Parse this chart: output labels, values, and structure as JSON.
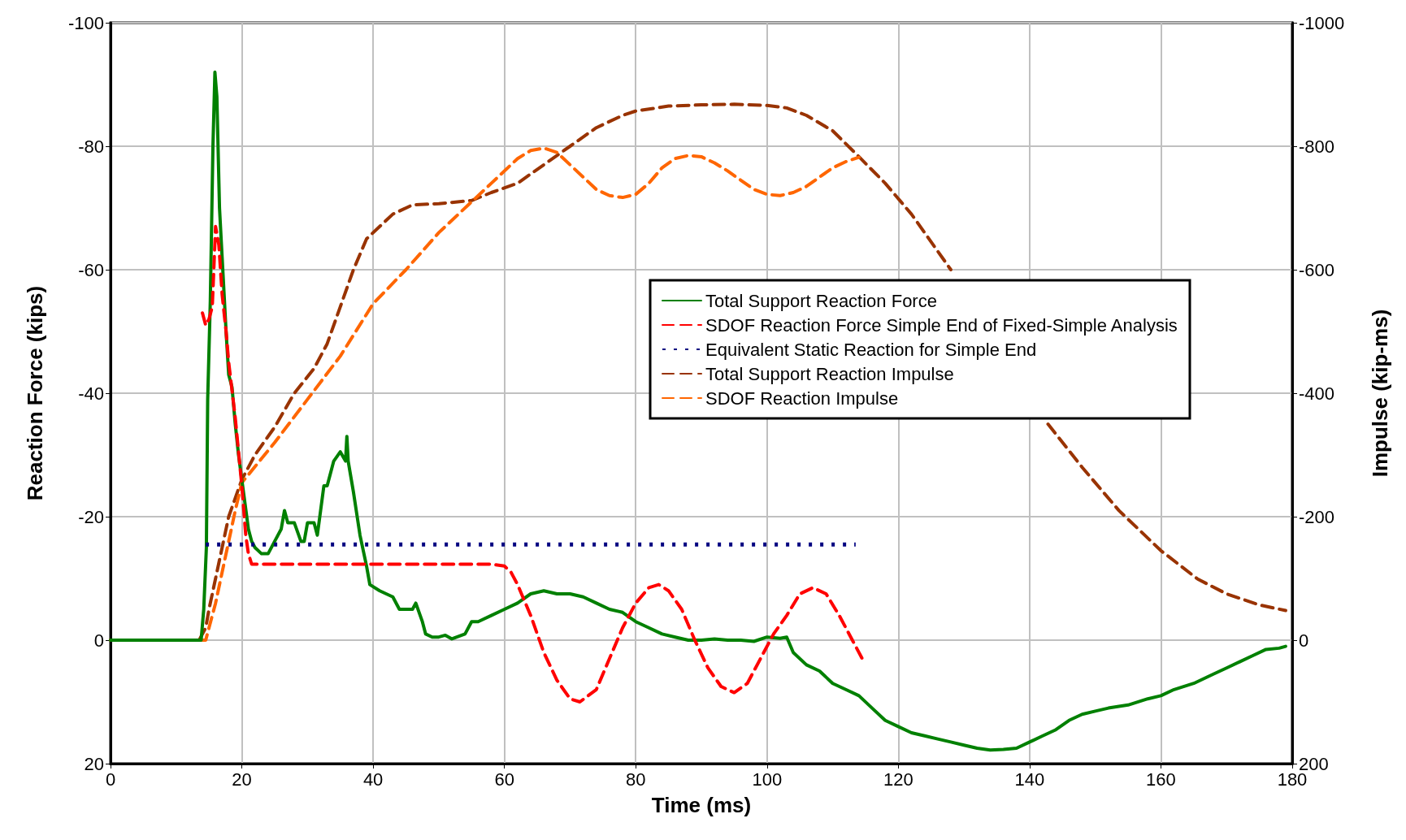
{
  "chart_data": {
    "type": "line",
    "xlabel": "Time (ms)",
    "ylabel": "Reaction Force (kips)",
    "y2label": "Impulse (kip-ms)",
    "xlim": [
      0,
      180
    ],
    "xticks": [
      0,
      20,
      40,
      60,
      80,
      100,
      120,
      140,
      160,
      180
    ],
    "ylim": [
      20,
      -100
    ],
    "yticks": [
      -100,
      -80,
      -60,
      -40,
      -20,
      0,
      20
    ],
    "y2lim": [
      200,
      -1000
    ],
    "y2ticks": [
      -1000,
      -800,
      -600,
      -400,
      -200,
      0,
      200
    ],
    "grid": true,
    "legend": "top right",
    "marker": "none",
    "series": [
      {
        "name": "Total Support Reaction Force",
        "color": "#008000",
        "line_style": "solid",
        "x": [
          0,
          2,
          10,
          13.8,
          14.2,
          14.6,
          14.8,
          15.2,
          15.6,
          15.9,
          16.2,
          16.6,
          17,
          17.6,
          18,
          18.5,
          19,
          19.5,
          20,
          20.5,
          21,
          21.5,
          22,
          23,
          24,
          25,
          26,
          26.5,
          27,
          28,
          29,
          29.5,
          30,
          31,
          31.5,
          32,
          32.5,
          33,
          34,
          35,
          35.8,
          36,
          36.2,
          37,
          38,
          39,
          39.5,
          41,
          43,
          44,
          46,
          46.5,
          47.5,
          48,
          49,
          50,
          51,
          52,
          54,
          55,
          56,
          58,
          60,
          62,
          64,
          66,
          68,
          70,
          72,
          74,
          76,
          78,
          80,
          82,
          84,
          86,
          88,
          90,
          92,
          94,
          96,
          98,
          100,
          102,
          103,
          104,
          106,
          108,
          110,
          112,
          114,
          116,
          118,
          120,
          122,
          124,
          126,
          128,
          130,
          132,
          134,
          136,
          138,
          140,
          142,
          144,
          146,
          148,
          150,
          152,
          155,
          158,
          160,
          162,
          165,
          168,
          170,
          172,
          174,
          176,
          178,
          179
        ],
        "values": [
          0,
          0,
          0,
          0,
          -5,
          -15,
          -39,
          -55,
          -80,
          -92,
          -88,
          -70,
          -62,
          -50,
          -43,
          -41,
          -35,
          -30,
          -26,
          -22,
          -18,
          -16,
          -15,
          -14,
          -14,
          -16,
          -18,
          -21,
          -19,
          -19,
          -16,
          -16,
          -19,
          -19,
          -17,
          -21,
          -25,
          -25,
          -29,
          -30.5,
          -29,
          -33,
          -29,
          -24,
          -17,
          -12,
          -9,
          -8,
          -7,
          -5,
          -5,
          -6,
          -3,
          -1,
          -0.5,
          -0.5,
          -0.8,
          -0.2,
          -1,
          -3,
          -3,
          -4,
          -5,
          -6,
          -7.5,
          -8,
          -7.5,
          -7.5,
          -7,
          -6,
          -5,
          -4.5,
          -3,
          -2,
          -1,
          -0.5,
          0,
          0,
          -0.2,
          0,
          0,
          0.2,
          -0.5,
          -0.3,
          -0.5,
          2,
          4,
          5,
          7,
          8,
          9,
          11,
          13,
          14,
          15,
          15.5,
          16,
          16.5,
          17,
          17.5,
          17.8,
          17.7,
          17.5,
          16.5,
          15.5,
          14.5,
          13,
          12,
          11.5,
          11,
          10.5,
          9.5,
          9,
          8,
          7,
          5.5,
          4.5,
          3.5,
          2.5,
          1.5,
          1.3,
          1
        ]
      },
      {
        "name": "SDOF Reaction Force Simple End of Fixed-Simple Analysis",
        "color": "#ff0000",
        "line_style": "dashed",
        "x": [
          14,
          14.5,
          15,
          15.5,
          16,
          16.5,
          17,
          17.6,
          18,
          19,
          20,
          20.6,
          21,
          21.5,
          30,
          40,
          50,
          58,
          60,
          61,
          62,
          64,
          66,
          68,
          70,
          71.5,
          74,
          76,
          78,
          80,
          82,
          83.5,
          85,
          87,
          89,
          91,
          93,
          95,
          97,
          99,
          101,
          103,
          105,
          107,
          109,
          111,
          113,
          114.5
        ],
        "values": [
          -53,
          -51,
          -52,
          -54,
          -67,
          -64,
          -56,
          -50,
          -45,
          -36,
          -25,
          -17,
          -14,
          -12.3,
          -12.3,
          -12.3,
          -12.3,
          -12.3,
          -12,
          -11,
          -9,
          -4,
          2,
          6.5,
          9.5,
          10,
          8,
          3,
          -2,
          -6,
          -8.5,
          -9,
          -8,
          -5,
          0,
          4.5,
          7.5,
          8.5,
          7,
          3,
          -1,
          -4,
          -7.5,
          -8.5,
          -7.5,
          -4,
          0,
          3
        ]
      },
      {
        "name": "Equivalent Static Reaction for Simple End",
        "color": "#000080",
        "line_style": "dotted",
        "x": [
          14.5,
          113.5
        ],
        "values": [
          -15.5,
          -15.5
        ]
      },
      {
        "name": "Total Support Reaction Impulse",
        "color": "#993300",
        "line_style": "dashed",
        "axis": "y2",
        "x": [
          0,
          13.5,
          14.5,
          15,
          16,
          17,
          18,
          19,
          20,
          22,
          25,
          28,
          31,
          33,
          35,
          37,
          39,
          41,
          43,
          46,
          50,
          55,
          58,
          62,
          66,
          70,
          74,
          78,
          80,
          85,
          90,
          95,
          100,
          103,
          106,
          110,
          114,
          118,
          122,
          128,
          135,
          142.8,
          148,
          153.6,
          160,
          165.6,
          170,
          175,
          179
        ],
        "values": [
          0,
          0,
          -20,
          -50,
          -100,
          -150,
          -200,
          -230,
          -260,
          -300,
          -345,
          -400,
          -440,
          -480,
          -540,
          -600,
          -650,
          -670,
          -690,
          -705,
          -707,
          -712,
          -725,
          -740,
          -770,
          -800,
          -830,
          -850,
          -857,
          -865,
          -867,
          -868,
          -866,
          -862,
          -850,
          -825,
          -783,
          -740,
          -690,
          -600,
          null,
          -350,
          -280,
          -210,
          -145,
          -99,
          -75,
          -57,
          -48
        ]
      },
      {
        "name": "SDOF Reaction Impulse",
        "color": "#ff6600",
        "line_style": "dashed",
        "axis": "y2",
        "x": [
          0,
          14.5,
          15,
          16,
          17,
          18,
          19,
          20,
          25,
          30,
          35,
          40,
          45,
          50,
          55,
          58,
          62,
          64,
          66,
          68,
          70,
          72,
          74,
          76,
          78,
          80,
          82,
          84,
          86,
          88,
          90,
          92,
          94,
          96,
          98,
          100,
          102,
          104,
          106,
          108,
          110,
          112,
          114
        ],
        "values": [
          0,
          0,
          -20,
          -60,
          -110,
          -160,
          -210,
          -255,
          -320,
          -390,
          -460,
          -545,
          -600,
          -660,
          -710,
          -740,
          -780,
          -793,
          -797,
          -790,
          -770,
          -750,
          -730,
          -720,
          -717,
          -722,
          -740,
          -765,
          -780,
          -785,
          -783,
          -773,
          -760,
          -745,
          -730,
          -722,
          -720,
          -725,
          -735,
          -750,
          -765,
          -775,
          -782
        ]
      }
    ]
  }
}
